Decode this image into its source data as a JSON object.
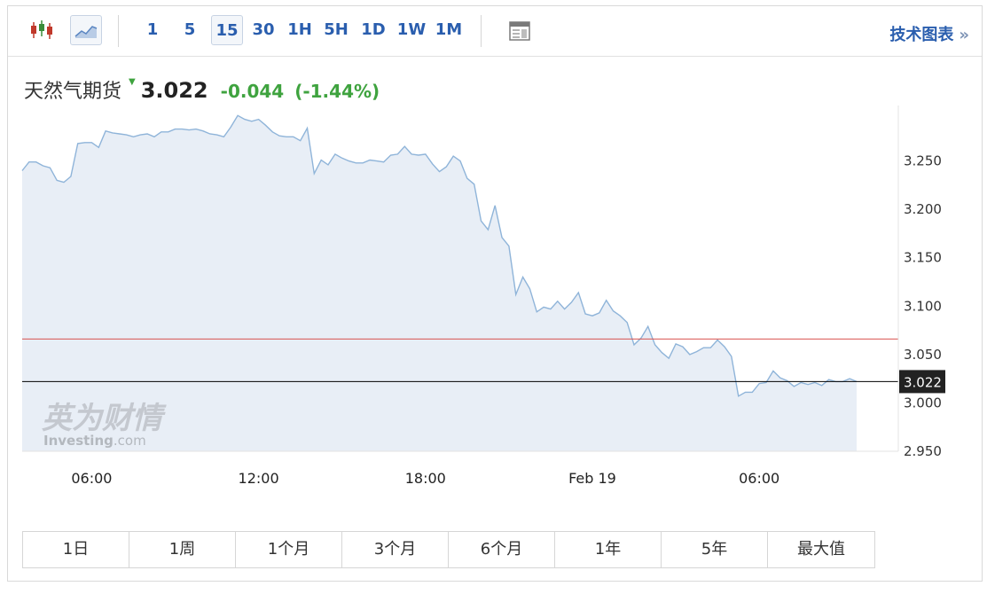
{
  "toolbar": {
    "chart_type_icons": [
      "candlestick-icon",
      "line-chart-icon"
    ],
    "timeframes": [
      {
        "label": "1",
        "active": false
      },
      {
        "label": "5",
        "active": false
      },
      {
        "label": "15",
        "active": true
      },
      {
        "label": "30",
        "active": false
      },
      {
        "label": "1H",
        "active": false
      },
      {
        "label": "5H",
        "active": false
      },
      {
        "label": "1D",
        "active": false
      },
      {
        "label": "1W",
        "active": false
      },
      {
        "label": "1M",
        "active": false
      }
    ],
    "layout_icon": "layout-icon",
    "tech_chart_label": "技术图表",
    "tech_chart_arrow": "»"
  },
  "quote": {
    "name": "天然气期货",
    "price": "3.022",
    "change": "-0.044",
    "change_pct": "(-1.44%)",
    "color_down": "#3fa33f"
  },
  "watermark": {
    "cn": "英为财情",
    "en": "Investing",
    "suffix": ".com"
  },
  "colors": {
    "line": "#8fb4d9",
    "area": "#e8eef6",
    "prev_close": "#d9534f",
    "current": "#000000"
  },
  "chart_data": {
    "type": "area",
    "title": "",
    "xlabel": "",
    "ylabel": "",
    "ylim": [
      2.95,
      3.3
    ],
    "yticks": [
      "2.950",
      "3.000",
      "3.050",
      "3.100",
      "3.150",
      "3.200",
      "3.250"
    ],
    "yticks_values": [
      2.95,
      3.0,
      3.05,
      3.1,
      3.15,
      3.2,
      3.25
    ],
    "xticks": [
      {
        "label": "06:00",
        "t": 6
      },
      {
        "label": "12:00",
        "t": 12
      },
      {
        "label": "18:00",
        "t": 18
      },
      {
        "label": "Feb 19",
        "t": 24
      },
      {
        "label": "06:00",
        "t": 30
      }
    ],
    "xlim": [
      3.5,
      35.0
    ],
    "reference_lines": [
      {
        "name": "previous-close",
        "value": 3.066
      },
      {
        "name": "current",
        "value": 3.022
      }
    ],
    "current_label": "3.022",
    "series": [
      {
        "values": [
          [
            3.5,
            3.24
          ],
          [
            3.75,
            3.249
          ],
          [
            4.0,
            3.249
          ],
          [
            4.25,
            3.245
          ],
          [
            4.5,
            3.243
          ],
          [
            4.75,
            3.23
          ],
          [
            5.0,
            3.228
          ],
          [
            5.25,
            3.234
          ],
          [
            5.5,
            3.268
          ],
          [
            5.75,
            3.269
          ],
          [
            6.0,
            3.269
          ],
          [
            6.25,
            3.264
          ],
          [
            6.5,
            3.281
          ],
          [
            6.75,
            3.279
          ],
          [
            7.0,
            3.278
          ],
          [
            7.25,
            3.277
          ],
          [
            7.5,
            3.275
          ],
          [
            7.75,
            3.277
          ],
          [
            8.0,
            3.278
          ],
          [
            8.25,
            3.275
          ],
          [
            8.5,
            3.28
          ],
          [
            8.75,
            3.28
          ],
          [
            9.0,
            3.283
          ],
          [
            9.25,
            3.283
          ],
          [
            9.5,
            3.282
          ],
          [
            9.75,
            3.283
          ],
          [
            10.0,
            3.281
          ],
          [
            10.25,
            3.278
          ],
          [
            10.5,
            3.277
          ],
          [
            10.75,
            3.275
          ],
          [
            11.0,
            3.285
          ],
          [
            11.25,
            3.297
          ],
          [
            11.5,
            3.293
          ],
          [
            11.75,
            3.291
          ],
          [
            12.0,
            3.293
          ],
          [
            12.25,
            3.287
          ],
          [
            12.5,
            3.28
          ],
          [
            12.75,
            3.276
          ],
          [
            13.0,
            3.275
          ],
          [
            13.25,
            3.275
          ],
          [
            13.5,
            3.271
          ],
          [
            13.75,
            3.284
          ],
          [
            14.0,
            3.237
          ],
          [
            14.25,
            3.251
          ],
          [
            14.5,
            3.246
          ],
          [
            14.75,
            3.257
          ],
          [
            15.0,
            3.253
          ],
          [
            15.25,
            3.25
          ],
          [
            15.5,
            3.248
          ],
          [
            15.75,
            3.248
          ],
          [
            16.0,
            3.251
          ],
          [
            16.25,
            3.25
          ],
          [
            16.5,
            3.249
          ],
          [
            16.75,
            3.256
          ],
          [
            17.0,
            3.257
          ],
          [
            17.25,
            3.265
          ],
          [
            17.5,
            3.257
          ],
          [
            17.75,
            3.256
          ],
          [
            18.0,
            3.257
          ],
          [
            18.25,
            3.247
          ],
          [
            18.5,
            3.239
          ],
          [
            18.75,
            3.244
          ],
          [
            19.0,
            3.255
          ],
          [
            19.25,
            3.25
          ],
          [
            19.5,
            3.232
          ],
          [
            19.75,
            3.226
          ],
          [
            20.0,
            3.188
          ],
          [
            20.25,
            3.179
          ],
          [
            20.5,
            3.204
          ],
          [
            20.75,
            3.171
          ],
          [
            21.0,
            3.162
          ],
          [
            21.25,
            3.112
          ],
          [
            21.5,
            3.13
          ],
          [
            21.75,
            3.118
          ],
          [
            22.0,
            3.094
          ],
          [
            22.25,
            3.099
          ],
          [
            22.5,
            3.097
          ],
          [
            22.75,
            3.105
          ],
          [
            23.0,
            3.097
          ],
          [
            23.25,
            3.104
          ],
          [
            23.5,
            3.114
          ],
          [
            23.75,
            3.092
          ],
          [
            24.0,
            3.09
          ],
          [
            24.25,
            3.093
          ],
          [
            24.5,
            3.106
          ],
          [
            24.75,
            3.095
          ],
          [
            25.0,
            3.09
          ],
          [
            25.25,
            3.083
          ],
          [
            25.5,
            3.06
          ],
          [
            25.75,
            3.067
          ],
          [
            26.0,
            3.079
          ],
          [
            26.25,
            3.06
          ],
          [
            26.5,
            3.052
          ],
          [
            26.75,
            3.046
          ],
          [
            27.0,
            3.061
          ],
          [
            27.25,
            3.058
          ],
          [
            27.5,
            3.05
          ],
          [
            27.75,
            3.053
          ],
          [
            28.0,
            3.057
          ],
          [
            28.25,
            3.057
          ],
          [
            28.5,
            3.065
          ],
          [
            28.75,
            3.058
          ],
          [
            29.0,
            3.048
          ],
          [
            29.25,
            3.007
          ],
          [
            29.5,
            3.011
          ],
          [
            29.75,
            3.011
          ],
          [
            30.0,
            3.02
          ],
          [
            30.25,
            3.021
          ],
          [
            30.5,
            3.033
          ],
          [
            30.75,
            3.026
          ],
          [
            31.0,
            3.023
          ],
          [
            31.25,
            3.017
          ],
          [
            31.5,
            3.021
          ],
          [
            31.75,
            3.019
          ],
          [
            32.0,
            3.021
          ],
          [
            32.25,
            3.018
          ],
          [
            32.5,
            3.024
          ],
          [
            32.75,
            3.022
          ],
          [
            33.0,
            3.022
          ],
          [
            33.25,
            3.025
          ],
          [
            33.5,
            3.022
          ]
        ]
      }
    ]
  },
  "ranges": [
    "1日",
    "1周",
    "1个月",
    "3个月",
    "6个月",
    "1年",
    "5年",
    "最大值"
  ]
}
